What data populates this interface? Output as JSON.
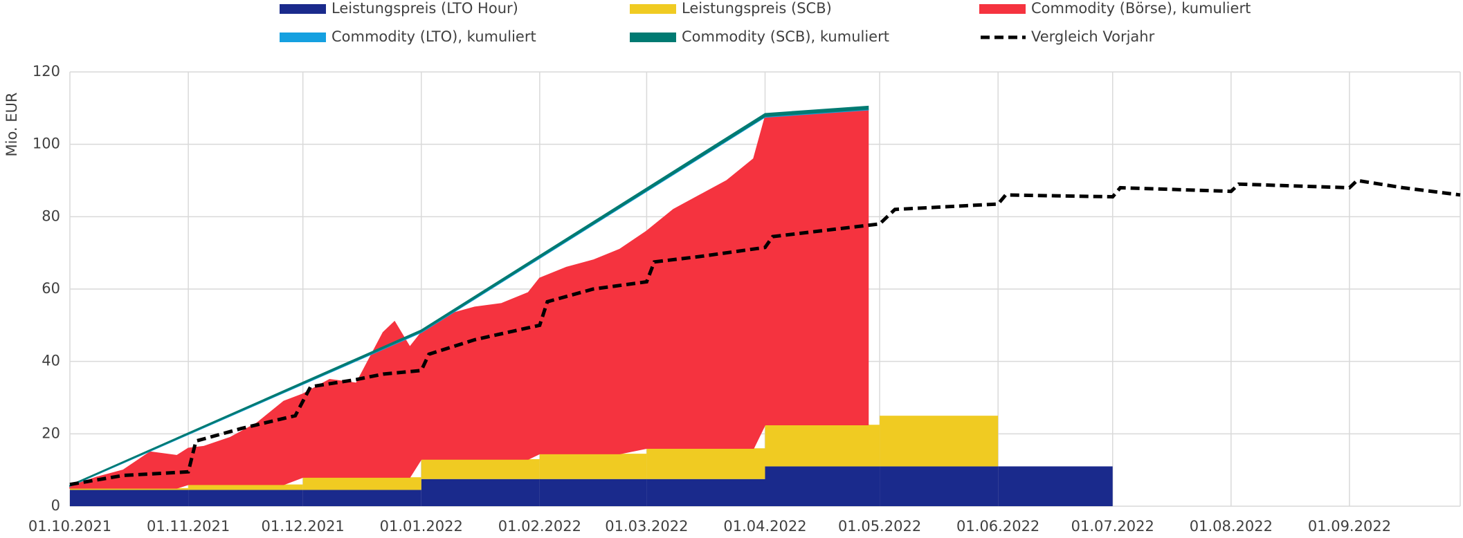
{
  "chart_data": {
    "type": "stacked_area",
    "y_label": "Mio. EUR",
    "xlim": [
      "01.10.2021",
      "30.09.2022"
    ],
    "xticks": [
      "01.10.2021",
      "01.11.2021",
      "01.12.2021",
      "01.01.2022",
      "01.02.2022",
      "01.03.2022",
      "01.04.2022",
      "01.05.2022",
      "01.06.2022",
      "01.07.2022",
      "01.08.2022",
      "01.09.2022"
    ],
    "ylim": [
      0,
      120
    ],
    "yticks": [
      0,
      20,
      40,
      60,
      80,
      100,
      120
    ],
    "grid": true,
    "legend": "top",
    "series": [
      {
        "name": "Leistungspreis (LTO Hour)",
        "color": "#1a2a8c",
        "kind": "step",
        "x": [
          "01.10.2021",
          "01.11.2021",
          "01.12.2021",
          "01.01.2022",
          "01.02.2022",
          "01.03.2022",
          "01.04.2022",
          "01.05.2022",
          "01.06.2022",
          "01.07.2022"
        ],
        "values": [
          4.5,
          4.5,
          4.5,
          7.5,
          7.5,
          7.5,
          11,
          11,
          11,
          null
        ]
      },
      {
        "name": "Leistungspreis (SCB)",
        "color": "#f0cb22",
        "kind": "step",
        "x": [
          "01.10.2021",
          "01.11.2021",
          "01.12.2021",
          "01.01.2022",
          "01.02.2022",
          "01.03.2022",
          "01.04.2022",
          "01.05.2022",
          "01.06.2022"
        ],
        "values": [
          0.5,
          1.5,
          3.5,
          5.5,
          7,
          8.5,
          11.5,
          14,
          null
        ]
      },
      {
        "name": "Commodity (Börse), kumuliert",
        "color": "#f5333f",
        "kind": "area",
        "x": [
          "01.10.2021",
          "08.10.2021",
          "15.10.2021",
          "22.10.2021",
          "29.10.2021",
          "01.11.2021",
          "05.11.2021",
          "12.11.2021",
          "19.11.2021",
          "26.11.2021",
          "01.12.2021",
          "08.12.2021",
          "15.12.2021",
          "22.12.2021",
          "25.12.2021",
          "29.12.2021",
          "01.01.2022",
          "08.01.2022",
          "15.01.2022",
          "22.01.2022",
          "29.01.2022",
          "01.02.2022",
          "08.02.2022",
          "15.02.2022",
          "22.02.2022",
          "01.03.2022",
          "08.03.2022",
          "15.03.2022",
          "22.03.2022",
          "29.03.2022",
          "01.04.2022",
          "08.04.2022",
          "15.04.2022",
          "22.04.2022",
          "28.04.2022"
        ],
        "values": [
          0.5,
          3,
          5,
          10,
          9,
          10,
          10.5,
          13,
          17,
          23,
          23,
          27,
          26,
          40,
          43,
          36,
          35,
          40,
          42,
          43,
          46,
          48.5,
          51.5,
          53.5,
          56.5,
          60,
          66,
          70,
          74,
          80,
          85,
          86,
          87,
          87,
          87
        ]
      },
      {
        "name": "Commodity (LTO), kumuliert",
        "color": "#15a0e0",
        "kind": "area",
        "x": [
          "01.10.2021",
          "01.01.2022",
          "01.04.2022",
          "28.04.2022"
        ],
        "values": [
          0.1,
          0.2,
          0.2,
          0.2
        ]
      },
      {
        "name": "Commodity (SCB), kumuliert",
        "color": "#007a72",
        "kind": "area",
        "x": [
          "01.10.2021",
          "01.01.2022",
          "01.04.2022",
          "28.04.2022"
        ],
        "values": [
          0.2,
          0.5,
          0.8,
          0.8
        ]
      },
      {
        "name": "Vergleich Vorjahr",
        "color": "#000000",
        "kind": "line",
        "dashed": true,
        "x": [
          "01.10.2021",
          "15.10.2021",
          "01.11.2021",
          "03.11.2021",
          "15.11.2021",
          "29.11.2021",
          "03.12.2021",
          "15.12.2021",
          "22.12.2021",
          "01.01.2022",
          "03.01.2022",
          "15.01.2022",
          "01.02.2022",
          "03.02.2022",
          "15.02.2022",
          "01.03.2022",
          "03.03.2022",
          "15.03.2022",
          "01.04.2022",
          "03.04.2022",
          "15.04.2022",
          "01.05.2022",
          "05.05.2022",
          "01.06.2022",
          "03.06.2022",
          "01.07.2022",
          "03.07.2022",
          "01.08.2022",
          "03.08.2022",
          "01.09.2022",
          "03.09.2022",
          "15.09.2022",
          "30.09.2022"
        ],
        "values": [
          6,
          8.5,
          9.5,
          18,
          21.5,
          25,
          33,
          35,
          36.5,
          37.5,
          42,
          46,
          50,
          56.5,
          60,
          62,
          67.5,
          69,
          71.5,
          74.5,
          76,
          78,
          82,
          83.5,
          86,
          85.5,
          88,
          87,
          89,
          88,
          90,
          88,
          86
        ]
      }
    ]
  }
}
